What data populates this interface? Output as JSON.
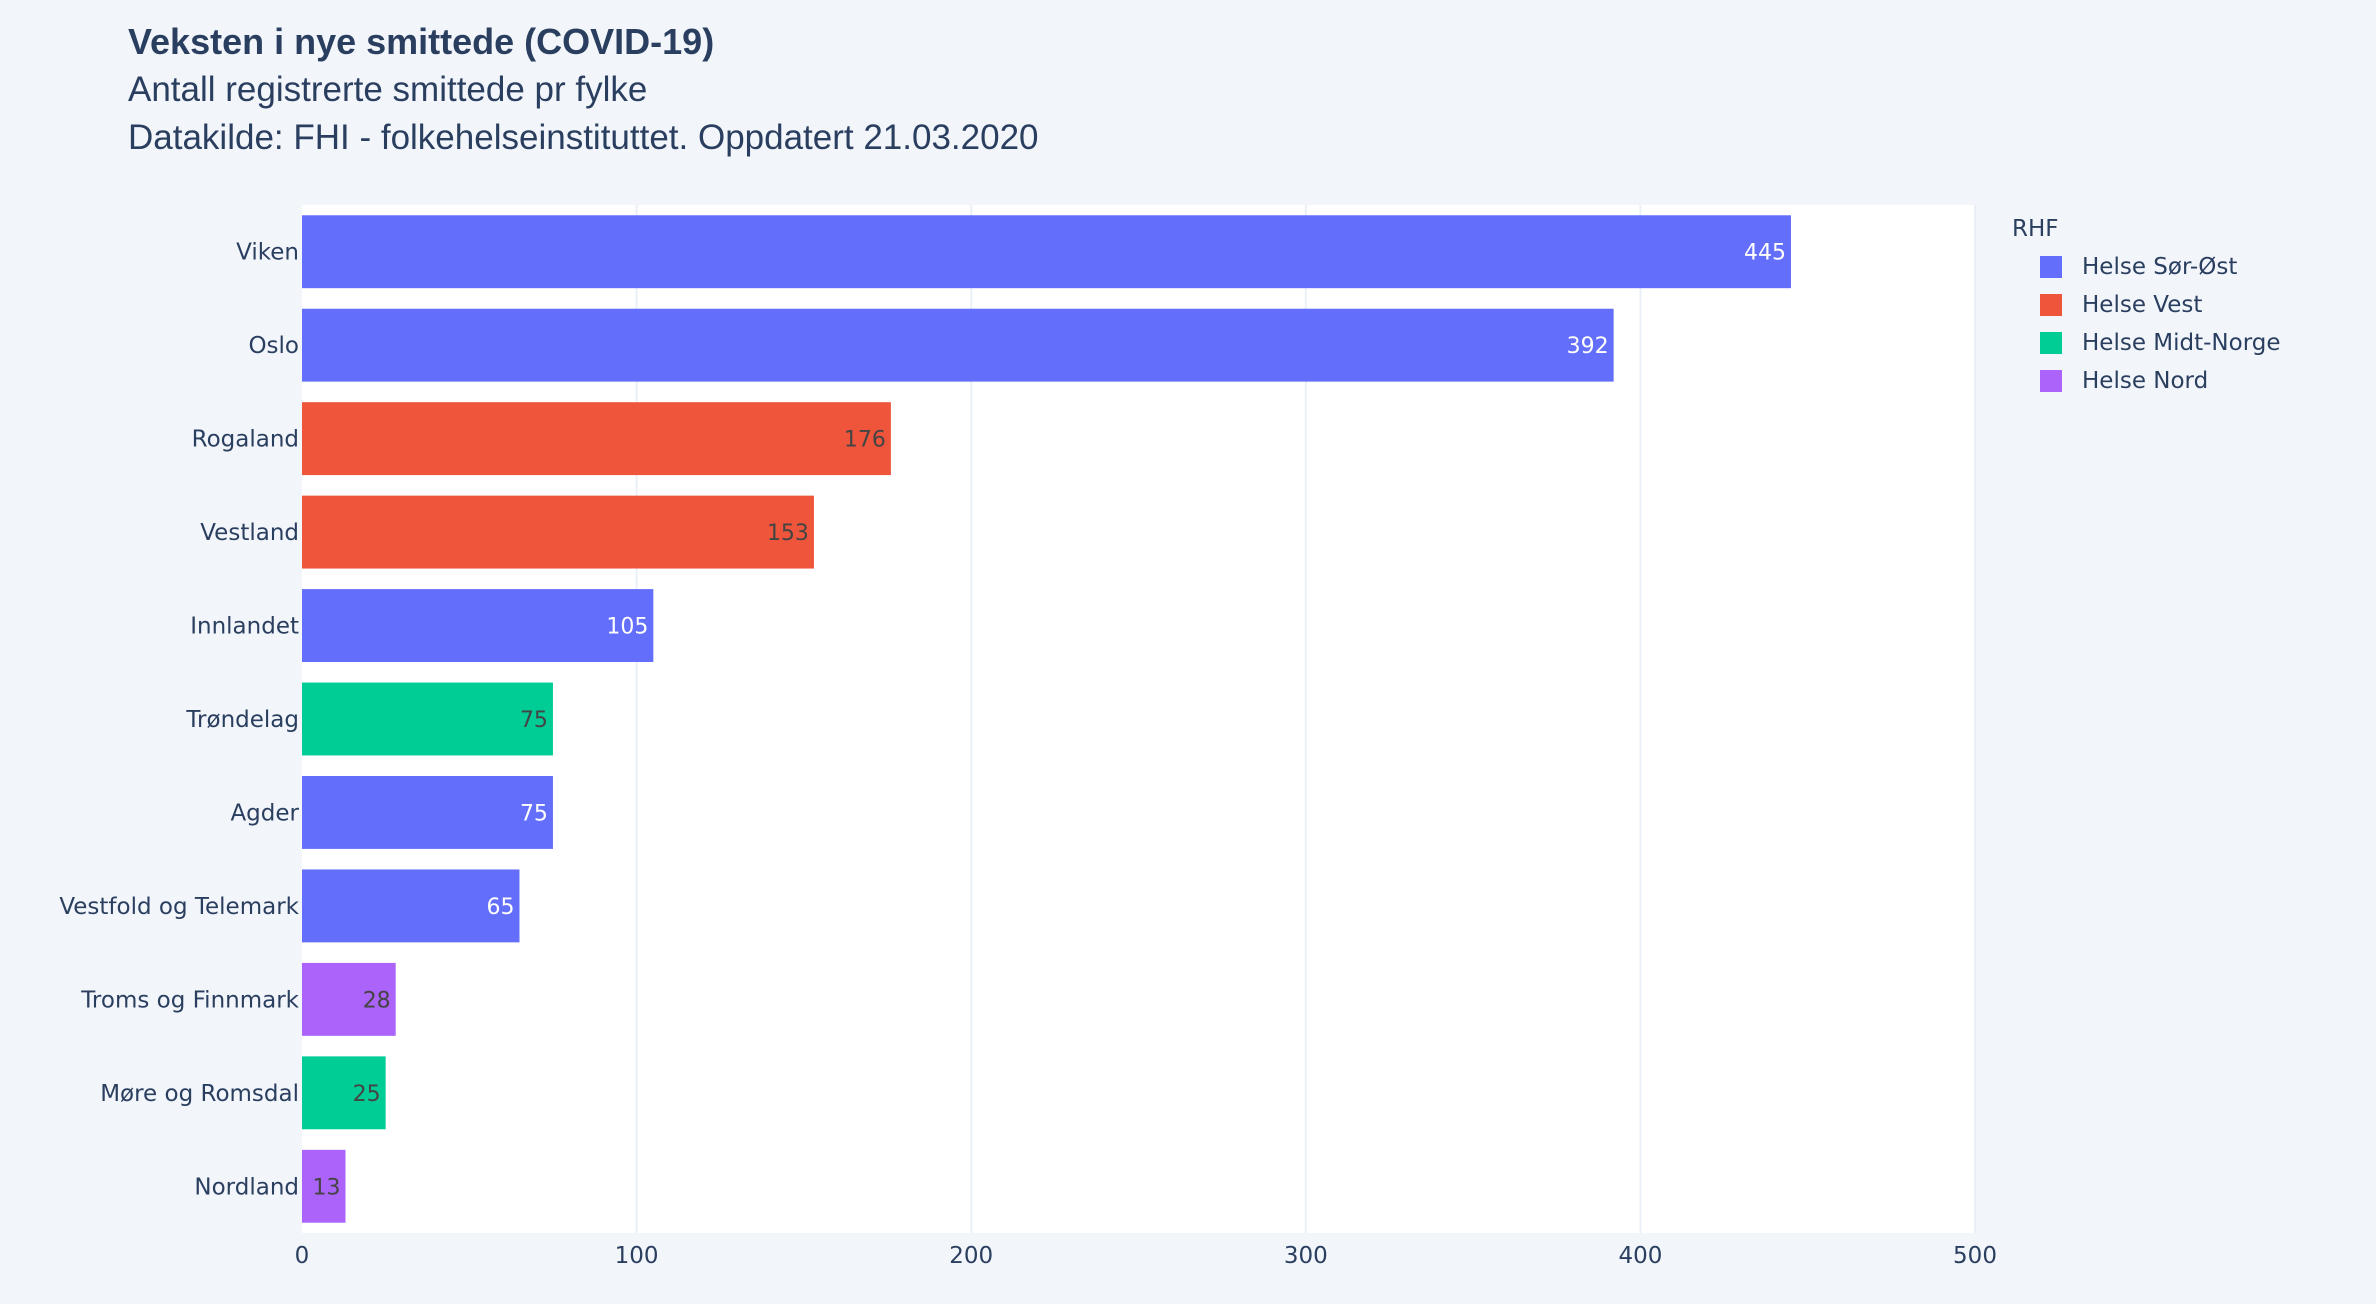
{
  "header": {
    "title": "Veksten i nye smittede (COVID-19)",
    "subtitle1": "Antall registrerte smittede pr fylke",
    "subtitle2": "Datakilde: FHI - folkehelseinstituttet. Oppdatert 21.03.2020"
  },
  "legend": {
    "title": "RHF",
    "items": [
      {
        "label": "Helse Sør-Øst",
        "color": "#636efa"
      },
      {
        "label": "Helse Vest",
        "color": "#ef553b"
      },
      {
        "label": "Helse Midt-Norge",
        "color": "#00cc96"
      },
      {
        "label": "Helse Nord",
        "color": "#ab63fa"
      }
    ]
  },
  "colors": {
    "plot_bg": "#ffffff",
    "page_bg": "#f2f5fa",
    "grid": "#ebf0f8",
    "text": "#2a3f5f",
    "bar_text_dark": "#444444",
    "bar_text_light": "#ffffff"
  },
  "chart_data": {
    "type": "bar",
    "orientation": "horizontal",
    "categories": [
      "Viken",
      "Oslo",
      "Rogaland",
      "Vestland",
      "Innlandet",
      "Trøndelag",
      "Agder",
      "Vestfold og Telemark",
      "Troms og Finnmark",
      "Møre og Romsdal",
      "Nordland"
    ],
    "values": [
      445,
      392,
      176,
      153,
      105,
      75,
      75,
      65,
      28,
      25,
      13
    ],
    "groups": [
      "Helse Sør-Øst",
      "Helse Sør-Øst",
      "Helse Vest",
      "Helse Vest",
      "Helse Sør-Øst",
      "Helse Midt-Norge",
      "Helse Sør-Øst",
      "Helse Sør-Øst",
      "Helse Nord",
      "Helse Midt-Norge",
      "Helse Nord"
    ],
    "xlim": [
      0,
      500
    ],
    "xticks": [
      0,
      100,
      200,
      300,
      400,
      500
    ],
    "grid": true,
    "legend_placement": "top-right"
  }
}
